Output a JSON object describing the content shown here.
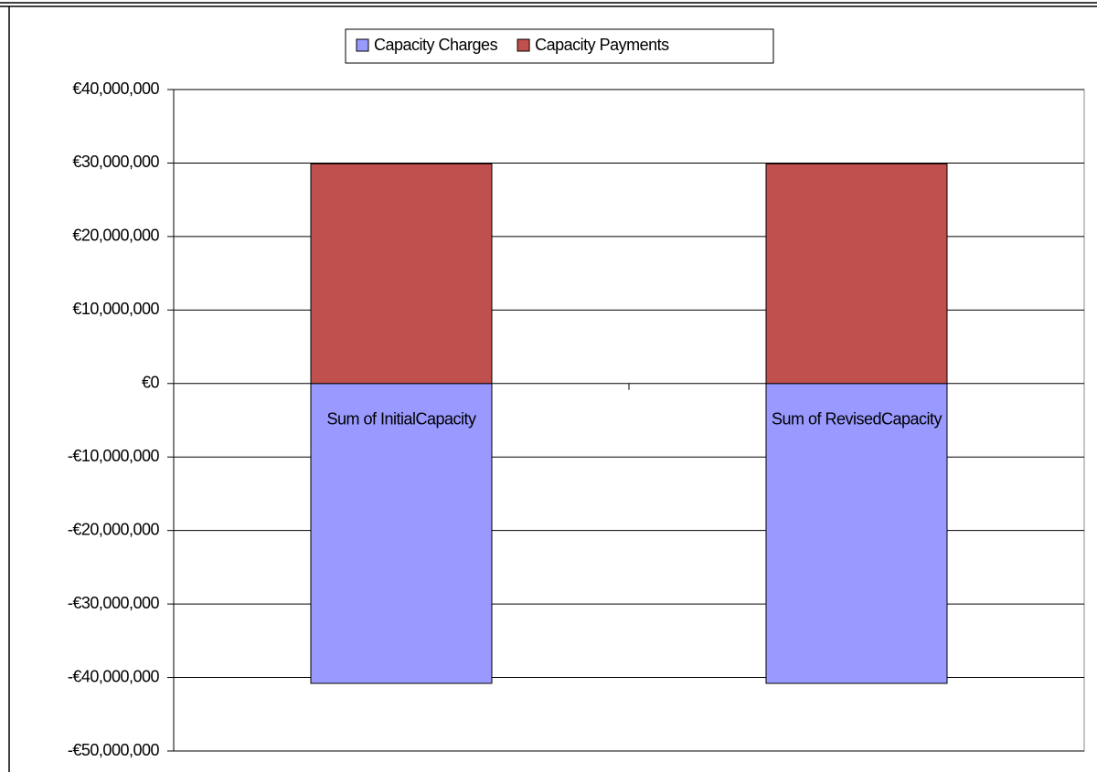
{
  "chart_data": {
    "type": "stacked-bar",
    "categories": [
      "Sum of InitialCapacity",
      "Sum of RevisedCapacity"
    ],
    "series": [
      {
        "name": "Capacity Charges",
        "color": "#9999ff",
        "values": [
          -40800000,
          -40800000
        ]
      },
      {
        "name": "Capacity Payments",
        "color": "#c0504d",
        "values": [
          29900000,
          29900000
        ]
      }
    ],
    "ylim": [
      -50000000,
      40000000
    ],
    "yticks": [
      {
        "value": -50000000,
        "label": "-€50,000,000"
      },
      {
        "value": -40000000,
        "label": "-€40,000,000"
      },
      {
        "value": -30000000,
        "label": "-€30,000,000"
      },
      {
        "value": -20000000,
        "label": "-€20,000,000"
      },
      {
        "value": -10000000,
        "label": "-€10,000,000"
      },
      {
        "value": 0,
        "label": "€0"
      },
      {
        "value": 10000000,
        "label": "€10,000,000"
      },
      {
        "value": 20000000,
        "label": "€20,000,000"
      },
      {
        "value": 30000000,
        "label": "€30,000,000"
      },
      {
        "value": 40000000,
        "label": "€40,000,000"
      }
    ],
    "grid": true,
    "legend": "top"
  }
}
